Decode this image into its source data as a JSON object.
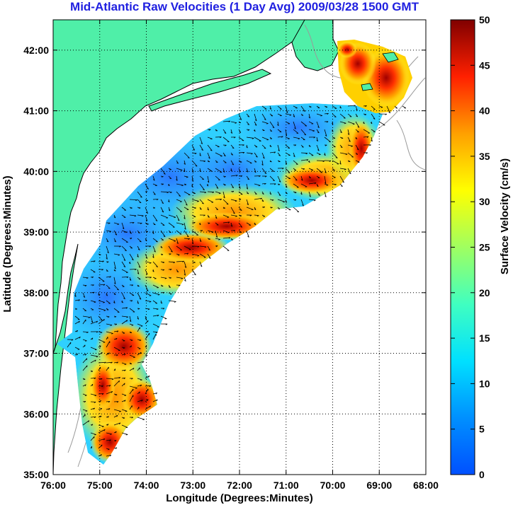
{
  "title": "Mid-Atlantic Raw Velocities (1 Day Avg) 2009/03/28 1500 GMT",
  "axes": {
    "xlabel": "Longitude (Degrees:Minutes)",
    "ylabel": "Latitude (Degrees:Minutes)",
    "x_ticks": [
      "76:00",
      "75:00",
      "74:00",
      "73:00",
      "72:00",
      "71:00",
      "70:00",
      "69:00",
      "68:00"
    ],
    "y_ticks": [
      "42:00",
      "41:00",
      "40:00",
      "39:00",
      "38:00",
      "37:00",
      "36:00",
      "35:00"
    ],
    "x_range_deg_west": [
      76,
      68
    ],
    "y_range_deg_north": [
      35,
      42.5
    ],
    "grid": "dotted"
  },
  "colorbar": {
    "label": "Surface Velocity (cm/s)",
    "ticks": [
      "50",
      "45",
      "40",
      "35",
      "30",
      "25",
      "20",
      "15",
      "10",
      "5",
      "0"
    ],
    "range": [
      0,
      50
    ],
    "colormap": "jet"
  },
  "colors": {
    "land": "#4fefa8",
    "title": "#2020e0",
    "coastline": "#000000",
    "bathymetry": "#999999"
  }
}
